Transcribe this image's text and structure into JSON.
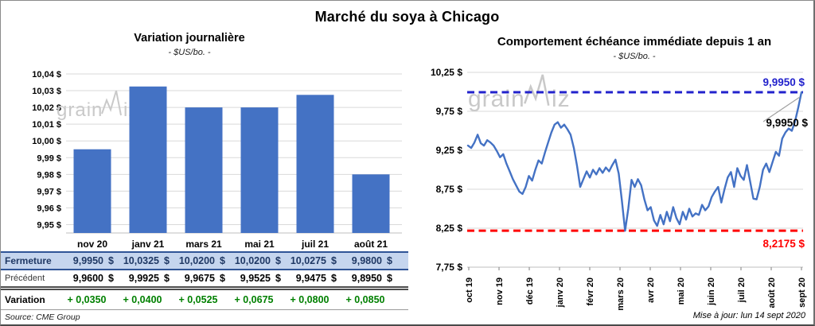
{
  "page": {
    "title": "Marché du soya à Chicago",
    "source": "Source: CME Group",
    "updated": "Mise à jour: lun 14 sept 2020",
    "watermark": {
      "part1": "grain",
      "part2": "iz"
    }
  },
  "colors": {
    "chart_blue": "#4472C4",
    "max_line_blue": "#2222CC",
    "min_line_red": "#FF0000",
    "variation_green": "#008000",
    "fermeture_bg": "#C5D5EE",
    "fermeture_text": "#1F3864",
    "gridline": "#D9D9D9",
    "axis_line": "#BFBFBF",
    "watermark": "#C9C9C9",
    "callout_gray": "#A0A0A0"
  },
  "table": {
    "columns": [
      "nov 20",
      "janv 21",
      "mars 21",
      "mai 21",
      "juil 21",
      "août 21"
    ],
    "rows": [
      {
        "label": "Fermeture",
        "unit": "$",
        "values": [
          "9,9950",
          "10,0325",
          "10,0200",
          "10,0200",
          "10,0275",
          "9,9800"
        ]
      },
      {
        "label": "Précédent",
        "unit": "$",
        "values": [
          "9,9600",
          "9,9925",
          "9,9675",
          "9,9525",
          "9,9475",
          "9,8950"
        ]
      },
      {
        "label": "Variation",
        "unit": "",
        "values": [
          "+ 0,0350",
          "+ 0,0400",
          "+ 0,0525",
          "+ 0,0675",
          "+ 0,0800",
          "+ 0,0850"
        ]
      }
    ]
  },
  "chart_data": [
    {
      "type": "bar",
      "title": "Variation  journalière",
      "subtitle": "- $US/bo. -",
      "categories": [
        "nov 20",
        "janv 21",
        "mars 21",
        "mai 21",
        "juil 21",
        "août 21"
      ],
      "values": [
        9.995,
        10.0325,
        10.02,
        10.02,
        10.0275,
        9.98
      ],
      "ylim": [
        9.945,
        10.04
      ],
      "ytick_values": [
        10.04,
        10.03,
        10.02,
        10.01,
        10.0,
        9.99,
        9.98,
        9.97,
        9.96,
        9.95
      ],
      "ytick_labels": [
        "10,04 $",
        "10,03 $",
        "10,02 $",
        "10,01 $",
        "10,00 $",
        "9,99 $",
        "9,98 $",
        "9,97 $",
        "9,96 $",
        "9,95 $"
      ],
      "grid": true,
      "bar_color": "#4472C4"
    },
    {
      "type": "line",
      "title": "Comportement  échéance immédiate depuis 1 an",
      "subtitle": "- $US/bo. -",
      "xlabel_ticks": [
        "oct 19",
        "nov 19",
        "déc 19",
        "janv 20",
        "févr 20",
        "mars 20",
        "avr 20",
        "mai 20",
        "juin 20",
        "juil 20",
        "août 20",
        "sept 20"
      ],
      "ylim": [
        7.75,
        10.25
      ],
      "ytick_values": [
        10.25,
        9.75,
        9.25,
        8.75,
        8.25,
        7.75
      ],
      "ytick_labels": [
        "10,25 $",
        "9,75 $",
        "9,25 $",
        "8,75 $",
        "8,25 $",
        "7,75 $"
      ],
      "grid": true,
      "line_color": "#4472C4",
      "max_line": {
        "value": 9.995,
        "label": "9,9950 $"
      },
      "min_line": {
        "value": 8.2175,
        "label": "8,2175 $"
      },
      "last_point_label": "9,9950 $",
      "values": [
        9.31,
        9.28,
        9.35,
        9.45,
        9.34,
        9.31,
        9.38,
        9.35,
        9.31,
        9.24,
        9.16,
        9.2,
        9.08,
        8.98,
        8.88,
        8.8,
        8.72,
        8.69,
        8.78,
        8.92,
        8.86,
        9.0,
        9.12,
        9.08,
        9.22,
        9.35,
        9.48,
        9.58,
        9.61,
        9.54,
        9.58,
        9.52,
        9.45,
        9.28,
        9.05,
        8.78,
        8.88,
        8.98,
        8.9,
        9.0,
        8.94,
        9.02,
        8.96,
        9.03,
        8.98,
        9.06,
        9.13,
        8.95,
        8.6,
        8.2175,
        8.5,
        8.87,
        8.78,
        8.88,
        8.8,
        8.62,
        8.48,
        8.52,
        8.35,
        8.28,
        8.42,
        8.3,
        8.46,
        8.34,
        8.52,
        8.38,
        8.3,
        8.46,
        8.36,
        8.5,
        8.4,
        8.44,
        8.42,
        8.55,
        8.48,
        8.53,
        8.65,
        8.72,
        8.78,
        8.58,
        8.75,
        8.9,
        8.97,
        8.78,
        9.02,
        8.92,
        8.87,
        9.06,
        8.85,
        8.63,
        8.62,
        8.78,
        9.0,
        9.08,
        8.97,
        9.1,
        9.23,
        9.18,
        9.4,
        9.48,
        9.53,
        9.5,
        9.62,
        9.8,
        9.995
      ]
    }
  ]
}
